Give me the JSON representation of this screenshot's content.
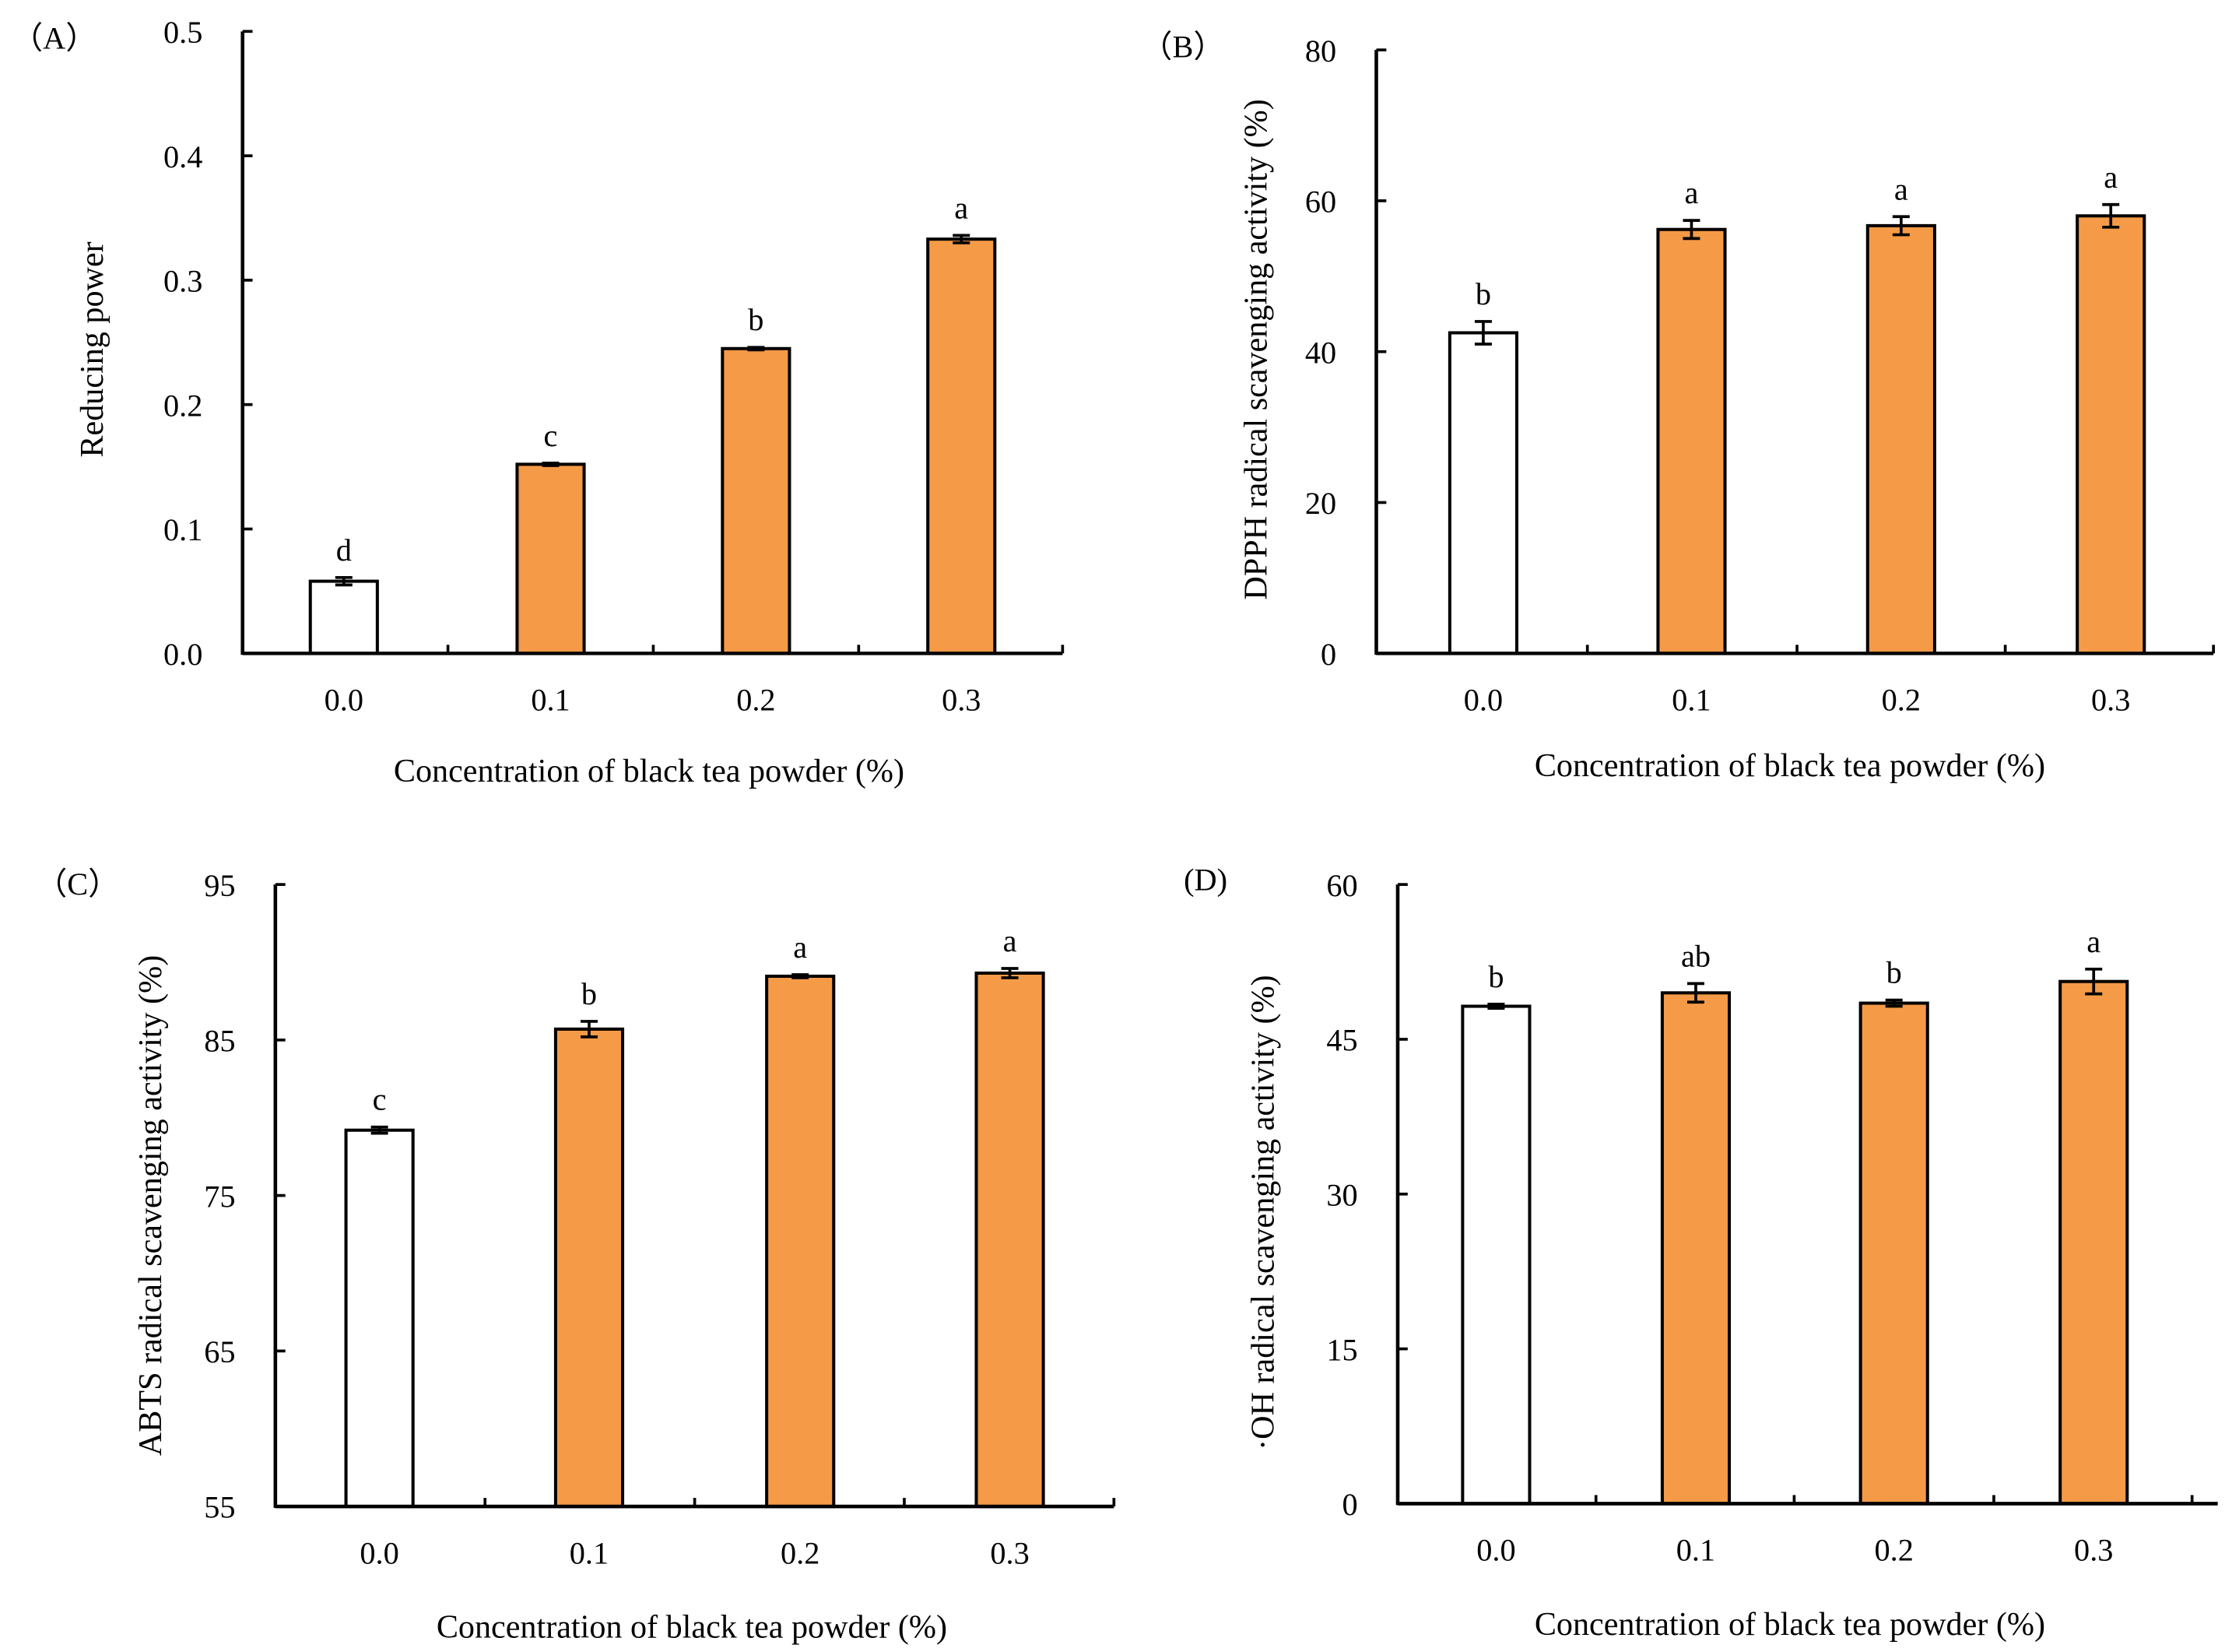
{
  "colors": {
    "control": "#ffffff",
    "treatment": "#f59a47",
    "outline": "#000000"
  },
  "chart_data": [
    {
      "type": "bar",
      "panel_label": "（A）",
      "categories": [
        "0.0",
        "0.1",
        "0.2",
        "0.3"
      ],
      "values": [
        0.058,
        0.152,
        0.245,
        0.333
      ],
      "errors": [
        0.003,
        0.001,
        0.001,
        0.003
      ],
      "letters": [
        "d",
        "c",
        "b",
        "a"
      ],
      "xlabel": "Concentration of black tea powder (%)",
      "ylabel": "Reducing power",
      "ylim": [
        0,
        0.5
      ],
      "yticks": [
        "0.0",
        "0.1",
        "0.2",
        "0.3",
        "0.4",
        "0.5"
      ],
      "grid": false
    },
    {
      "type": "bar",
      "panel_label": "（B）",
      "categories": [
        "0.0",
        "0.1",
        "0.2",
        "0.3"
      ],
      "values": [
        42.5,
        56.2,
        56.7,
        58.0
      ],
      "errors": [
        1.5,
        1.2,
        1.2,
        1.5
      ],
      "letters": [
        "b",
        "a",
        "a",
        "a"
      ],
      "xlabel": "Concentration of black tea powder (%)",
      "ylabel": "DPPH radical scavenging activity (%)",
      "ylim": [
        0,
        80
      ],
      "yticks": [
        "0",
        "20",
        "40",
        "60",
        "80"
      ],
      "grid": false
    },
    {
      "type": "bar",
      "panel_label": "（C）",
      "categories": [
        "0.0",
        "0.1",
        "0.2",
        "0.3"
      ],
      "values": [
        79.2,
        85.7,
        89.1,
        89.3
      ],
      "errors": [
        0.2,
        0.5,
        0.1,
        0.3
      ],
      "letters": [
        "c",
        "b",
        "a",
        "a"
      ],
      "xlabel": "Concentration of black tea powder (%)",
      "ylabel": "ABTS radical scavenging activity (%)",
      "ylim": [
        55,
        95
      ],
      "yticks": [
        "55",
        "65",
        "75",
        "85",
        "95"
      ],
      "grid": false
    },
    {
      "type": "bar",
      "panel_label": "(D)",
      "categories": [
        "0.0",
        "0.1",
        "0.2",
        "0.3"
      ],
      "values": [
        48.2,
        49.5,
        48.5,
        50.6
      ],
      "errors": [
        0.2,
        0.9,
        0.3,
        1.2
      ],
      "letters": [
        "b",
        "ab",
        "b",
        "a"
      ],
      "xlabel": "Concentration of black tea powder (%)",
      "ylabel": "·OH radical scavenging activity (%)",
      "ylim": [
        0,
        60
      ],
      "yticks": [
        "0",
        "15",
        "30",
        "45",
        "60"
      ],
      "grid": false
    }
  ]
}
